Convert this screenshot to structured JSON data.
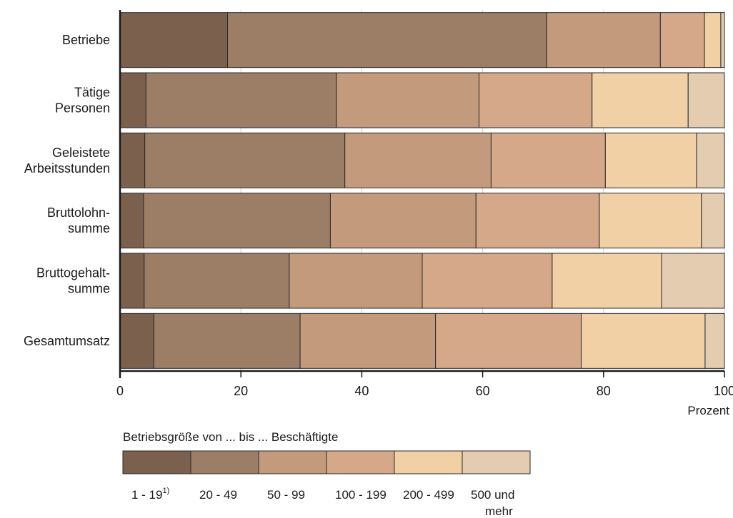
{
  "chart_data": {
    "type": "bar",
    "orientation": "horizontal",
    "stacked": true,
    "categories": [
      [
        "Betriebe"
      ],
      [
        "Tätige",
        "Personen"
      ],
      [
        "Geleistete",
        "Arbeitsstunden"
      ],
      [
        "Bruttolohn-",
        "summe"
      ],
      [
        "Bruttogehalt-",
        "summe"
      ],
      [
        "Gesamtumsatz"
      ]
    ],
    "series": [
      {
        "name": "1 - 19",
        "name_sup": "1)",
        "color": "#7b604e",
        "values": [
          17.8,
          4.3,
          4.1,
          3.9,
          4.0,
          5.6
        ]
      },
      {
        "name": "20 - 49",
        "color": "#9c7e66",
        "values": [
          52.8,
          31.5,
          33.1,
          30.9,
          24.0,
          24.2
        ]
      },
      {
        "name": "50 - 99",
        "color": "#c39a7b",
        "values": [
          18.8,
          23.6,
          24.2,
          24.1,
          22.0,
          22.4
        ]
      },
      {
        "name": "100 - 199",
        "color": "#d5a88a",
        "values": [
          7.3,
          18.7,
          18.9,
          20.4,
          21.5,
          24.1
        ]
      },
      {
        "name": "200 - 499",
        "color": "#f1d0a5",
        "values": [
          2.7,
          15.9,
          15.1,
          16.9,
          18.1,
          20.5
        ]
      },
      {
        "name": "500 und mehr",
        "color": "#e4ccb0",
        "values": [
          0.6,
          6.0,
          4.6,
          3.8,
          10.4,
          3.2
        ]
      }
    ],
    "xticks": [
      "0",
      "20",
      "40",
      "60",
      "80",
      "100"
    ],
    "xlim": [
      0,
      100
    ],
    "xlabel": "Prozent",
    "grid": true,
    "legend_title": "Betriebsgröße von ... bis ... Beschäftigte",
    "legend_position": "bottom"
  }
}
